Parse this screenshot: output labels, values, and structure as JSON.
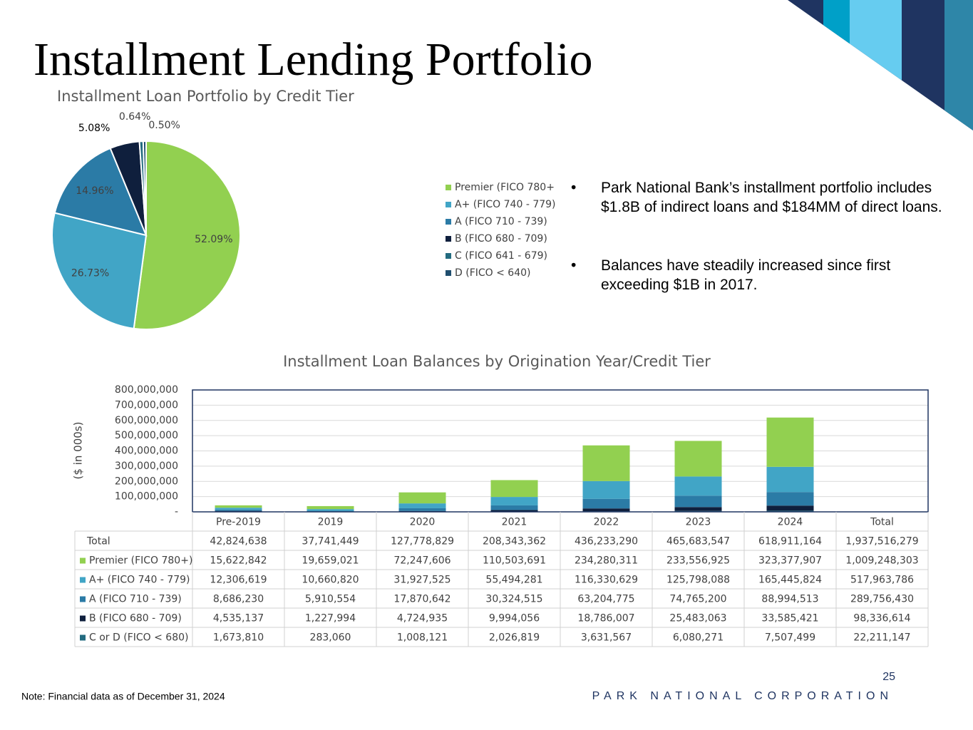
{
  "title": "Installment Lending Portfolio",
  "bullets": [
    "Park National Bank’s installment portfolio includes $1.8B of indirect loans and $184MM of direct loans.",
    "Balances have steadily increased since first exceeding $1B in 2017."
  ],
  "note": "Note: Financial data as of December 31, 2024",
  "page_number": "25",
  "footer": "PARK NATIONAL CORPORATION",
  "chart_data": [
    {
      "type": "pie",
      "title": "Installment Loan Portfolio by Credit Tier",
      "categories": [
        "Premier (FICO 780+",
        "A+ (FICO 740 - 779)",
        "A (FICO 710 - 739)",
        "B (FICO 680 - 709)",
        "C (FICO 641 - 679)",
        "D (FICO < 640)"
      ],
      "values": [
        52.09,
        26.73,
        14.96,
        5.08,
        0.64,
        0.5
      ],
      "value_labels": [
        "52.09%",
        "26.73%",
        "14.96%",
        "5.08%",
        "0.64%",
        "0.50%"
      ],
      "colors": [
        "#92d050",
        "#41a5c6",
        "#2b7ba6",
        "#0f1f3d",
        "#236b80",
        "#1f4e6e"
      ],
      "legend": "right"
    },
    {
      "type": "stacked_bar",
      "title": "Installment Loan Balances by Origination Year/Credit Tier",
      "y_label": "($ in 000s)",
      "categories": [
        "Pre-2019",
        "2019",
        "2020",
        "2021",
        "2022",
        "2023",
        "2024"
      ],
      "total_header": "Total",
      "series": [
        {
          "name": "Premier (FICO 780+)",
          "color": "#92d050",
          "values": [
            15622842,
            19659021,
            72247606,
            110503691,
            234280311,
            233556925,
            323377907
          ],
          "value_labels": [
            "15,622,842",
            "19,659,021",
            "72,247,606",
            "110,503,691",
            "234,280,311",
            "233,556,925",
            "323,377,907"
          ],
          "total": 1009248303,
          "total_label": "1,009,248,303"
        },
        {
          "name": "A+ (FICO 740 - 779)",
          "color": "#41a5c6",
          "values": [
            12306619,
            10660820,
            31927525,
            55494281,
            116330629,
            125798088,
            165445824
          ],
          "value_labels": [
            "12,306,619",
            "10,660,820",
            "31,927,525",
            "55,494,281",
            "116,330,629",
            "125,798,088",
            "165,445,824"
          ],
          "total": 517963786,
          "total_label": "517,963,786"
        },
        {
          "name": "A (FICO 710 - 739)",
          "color": "#2b7ba6",
          "values": [
            8686230,
            5910554,
            17870642,
            30324515,
            63204775,
            74765200,
            88994513
          ],
          "value_labels": [
            "8,686,230",
            "5,910,554",
            "17,870,642",
            "30,324,515",
            "63,204,775",
            "74,765,200",
            "88,994,513"
          ],
          "total": 289756430,
          "total_label": "289,756,430"
        },
        {
          "name": "B (FICO 680 - 709)",
          "color": "#0f1f3d",
          "values": [
            4535137,
            1227994,
            4724935,
            9994056,
            18786007,
            25483063,
            33585421
          ],
          "value_labels": [
            "4,535,137",
            "1,227,994",
            "4,724,935",
            "9,994,056",
            "18,786,007",
            "25,483,063",
            "33,585,421"
          ],
          "total": 98336614,
          "total_label": "98,336,614"
        },
        {
          "name": "C or D (FICO < 680)",
          "color": "#236b80",
          "values": [
            1673810,
            283060,
            1008121,
            2026819,
            3631567,
            6080271,
            7507499
          ],
          "value_labels": [
            "1,673,810",
            "283,060",
            "1,008,121",
            "2,026,819",
            "3,631,567",
            "6,080,271",
            "7,507,499"
          ],
          "total": 22211147,
          "total_label": "22,211,147"
        }
      ],
      "totals_row": {
        "name": "Total",
        "values": [
          42824638,
          37741449,
          127778829,
          208343362,
          436233290,
          465683547,
          618911164
        ],
        "value_labels": [
          "42,824,638",
          "37,741,449",
          "127,778,829",
          "208,343,362",
          "436,233,290",
          "465,683,547",
          "618,911,164"
        ],
        "total": 1937516279,
        "total_label": "1,937,516,279"
      },
      "ylim": [
        0,
        800000000
      ],
      "yticks": [
        {
          "value": 0,
          "label": "-"
        },
        {
          "value": 100000000,
          "label": "100,000,000"
        },
        {
          "value": 200000000,
          "label": "200,000,000"
        },
        {
          "value": 300000000,
          "label": "300,000,000"
        },
        {
          "value": 400000000,
          "label": "400,000,000"
        },
        {
          "value": 500000000,
          "label": "500,000,000"
        },
        {
          "value": 600000000,
          "label": "600,000,000"
        },
        {
          "value": 700000000,
          "label": "700,000,000"
        },
        {
          "value": 800000000,
          "label": "800,000,000"
        }
      ],
      "grid": true
    }
  ]
}
